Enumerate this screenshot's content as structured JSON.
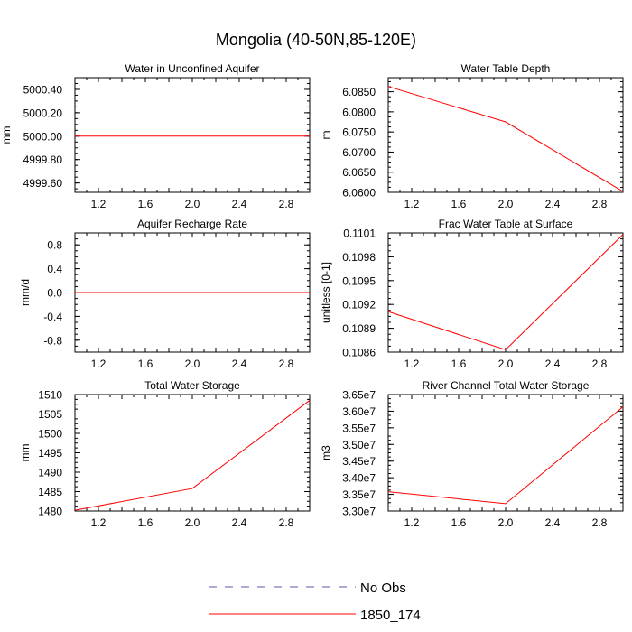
{
  "figure_title": "Mongolia (40-50N,85-120E)",
  "legend": {
    "obs_label": "No Obs",
    "model_label": "1850_174",
    "obs_color": "#5a5aa0",
    "model_color": "#ff0000"
  },
  "chart_data": [
    {
      "type": "line",
      "title": "Water in Unconfined Aquifer",
      "ylabel": "mm",
      "xlim": [
        1,
        3
      ],
      "xticks": [
        "1.2",
        "1.6",
        "2.0",
        "2.4",
        "2.8"
      ],
      "ylim": [
        4999.52,
        5000.5
      ],
      "yticks": [
        "4999.60",
        "4999.80",
        "5000.00",
        "5000.20",
        "5000.40"
      ],
      "series": [
        {
          "name": "1850_174",
          "x": [
            1,
            2,
            3
          ],
          "y": [
            5000.0,
            5000.0,
            5000.0
          ]
        }
      ]
    },
    {
      "type": "line",
      "title": "Water Table Depth",
      "ylabel": "m",
      "xlim": [
        1,
        3
      ],
      "xticks": [
        "1.2",
        "1.6",
        "2.0",
        "2.4",
        "2.8"
      ],
      "ylim": [
        6.06,
        6.0885
      ],
      "yticks": [
        "6.0600",
        "6.0650",
        "6.0700",
        "6.0750",
        "6.0800",
        "6.0850"
      ],
      "series": [
        {
          "name": "1850_174",
          "x": [
            1,
            2,
            3
          ],
          "y": [
            6.0863,
            6.0775,
            6.0602
          ]
        }
      ]
    },
    {
      "type": "line",
      "title": "Aquifer Recharge Rate",
      "ylabel": "mm/d",
      "xlim": [
        1,
        3
      ],
      "xticks": [
        "1.2",
        "1.6",
        "2.0",
        "2.4",
        "2.8"
      ],
      "ylim": [
        -1.0,
        1.0
      ],
      "yticks": [
        "-0.8",
        "-0.4",
        "0.0",
        "0.4",
        "0.8"
      ],
      "series": [
        {
          "name": "1850_174",
          "x": [
            1,
            2,
            3
          ],
          "y": [
            0.0,
            0.0,
            0.0
          ]
        }
      ]
    },
    {
      "type": "line",
      "title": "Frac Water Table at Surface",
      "ylabel": "unitless [0-1]",
      "xlim": [
        1,
        3
      ],
      "xticks": [
        "1.2",
        "1.6",
        "2.0",
        "2.4",
        "2.8"
      ],
      "ylim": [
        0.1086,
        0.1101
      ],
      "yticks": [
        "0.1086",
        "0.1089",
        "0.1092",
        "0.1095",
        "0.1098",
        "0.1101"
      ],
      "series": [
        {
          "name": "1850_174",
          "x": [
            1,
            2,
            3
          ],
          "y": [
            0.10911,
            0.10863,
            0.11008
          ]
        }
      ]
    },
    {
      "type": "line",
      "title": "Total Water Storage",
      "ylabel": "mm",
      "xlim": [
        1,
        3
      ],
      "xticks": [
        "1.2",
        "1.6",
        "2.0",
        "2.4",
        "2.8"
      ],
      "ylim": [
        1480,
        1510
      ],
      "yticks": [
        "1480",
        "1485",
        "1490",
        "1495",
        "1500",
        "1505",
        "1510"
      ],
      "series": [
        {
          "name": "1850_174",
          "x": [
            1,
            2,
            3
          ],
          "y": [
            1480.2,
            1485.8,
            1508.5
          ]
        }
      ]
    },
    {
      "type": "line",
      "title": "River Channel Total Water Storage",
      "ylabel": "m3",
      "xlim": [
        1,
        3
      ],
      "xticks": [
        "1.2",
        "1.6",
        "2.0",
        "2.4",
        "2.8"
      ],
      "ylim": [
        33000000,
        36500000
      ],
      "yticks": [
        "3.30e7",
        "3.35e7",
        "3.40e7",
        "3.45e7",
        "3.50e7",
        "3.55e7",
        "3.60e7",
        "3.65e7"
      ],
      "series": [
        {
          "name": "1850_174",
          "x": [
            1,
            2,
            3
          ],
          "y": [
            33580000,
            33220000,
            36130000
          ]
        }
      ]
    }
  ]
}
